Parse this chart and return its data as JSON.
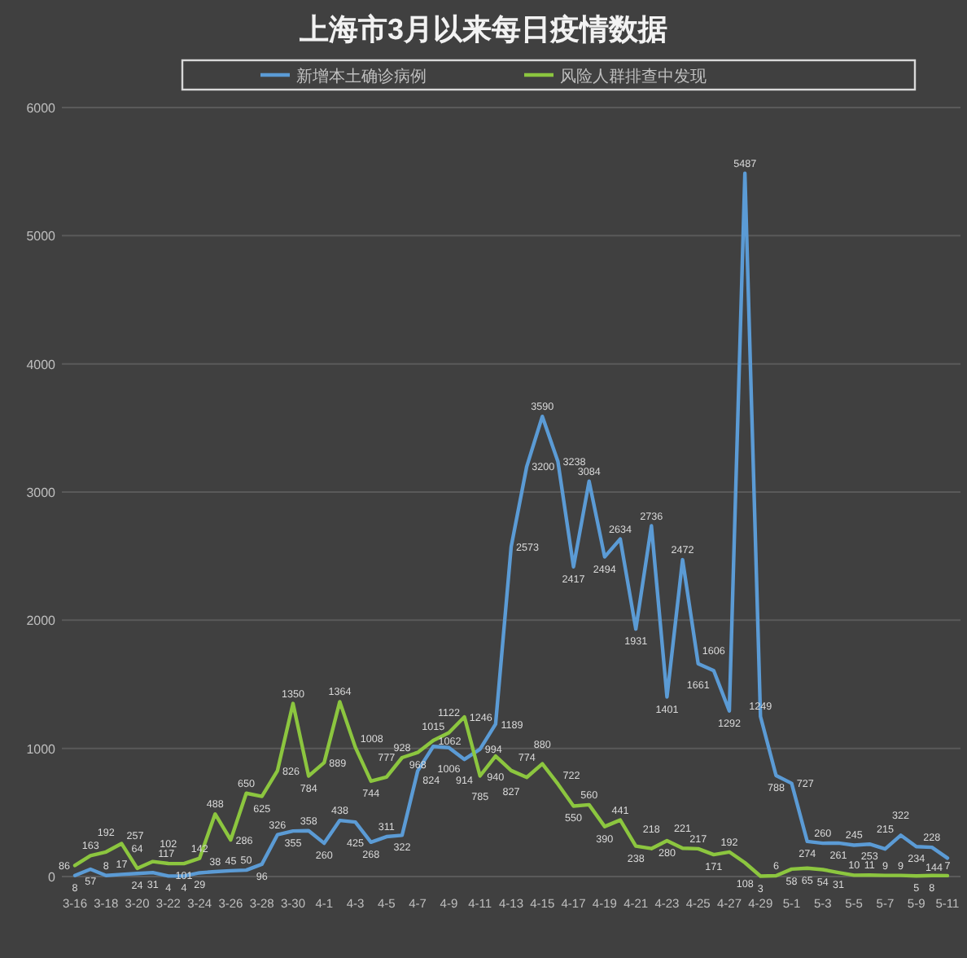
{
  "chart_data": {
    "type": "line",
    "title": "上海市3月以来每日疫情数据",
    "categories": [
      "3-16",
      null,
      "3-18",
      null,
      "3-20",
      null,
      "3-22",
      null,
      "3-24",
      null,
      "3-26",
      null,
      "3-28",
      null,
      "3-30",
      null,
      "4-1",
      null,
      "4-3",
      null,
      "4-5",
      null,
      "4-7",
      null,
      "4-9",
      null,
      "4-11",
      null,
      "4-13",
      null,
      "4-15",
      null,
      "4-17",
      null,
      "4-19",
      null,
      "4-21",
      null,
      "4-23",
      null,
      "4-25",
      null,
      "4-27",
      null,
      "4-29",
      null,
      "5-1",
      null,
      "5-3",
      null,
      "5-5",
      null,
      "5-7",
      null,
      "5-9",
      null,
      "5-11"
    ],
    "series": [
      {
        "name": "新增本土确诊病例",
        "color": "#5b9bd5",
        "values": [
          8,
          57,
          8,
          17,
          24,
          31,
          4,
          4,
          29,
          38,
          45,
          50,
          96,
          326,
          355,
          358,
          260,
          438,
          425,
          268,
          311,
          322,
          824,
          1015,
          1006,
          914,
          994,
          1189,
          2573,
          3200,
          3590,
          3238,
          2417,
          3084,
          2494,
          2634,
          1931,
          2736,
          1401,
          2472,
          1661,
          1606,
          1292,
          5487,
          1249,
          788,
          727,
          274,
          260,
          261,
          245,
          253,
          215,
          322,
          234,
          228,
          144
        ]
      },
      {
        "name": "风险人群排查中发现",
        "color": "#8cc63f",
        "values": [
          86,
          163,
          192,
          257,
          64,
          117,
          102,
          101,
          142,
          488,
          286,
          650,
          625,
          826,
          1350,
          784,
          889,
          1364,
          1008,
          744,
          777,
          928,
          968,
          1062,
          1122,
          1246,
          785,
          940,
          827,
          774,
          880,
          722,
          550,
          560,
          390,
          441,
          238,
          218,
          280,
          221,
          217,
          171,
          192,
          108,
          3,
          6,
          58,
          65,
          54,
          31,
          10,
          11,
          9,
          9,
          5,
          8,
          7
        ]
      }
    ],
    "ylim": [
      0,
      6000
    ],
    "yticks": [
      0,
      1000,
      2000,
      3000,
      4000,
      5000,
      6000
    ],
    "grid": "y",
    "legend": "top",
    "data_labels": true
  }
}
